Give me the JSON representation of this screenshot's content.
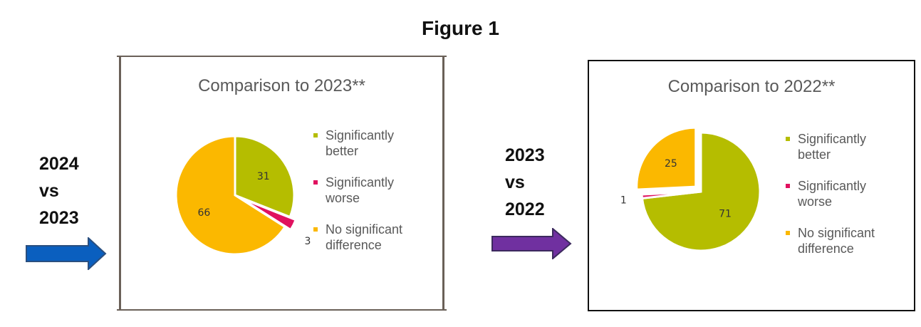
{
  "figure_title": "Figure 1",
  "left_label": [
    "2024",
    "vs",
    "2023"
  ],
  "middle_label": [
    "2023",
    "vs",
    "2022"
  ],
  "colors": {
    "better": "#b5bd00",
    "worse": "#e0115f",
    "no_diff": "#fbb800",
    "arrow_left": "#0a5fbf",
    "arrow_right": "#7030a0"
  },
  "legend": [
    {
      "line1": "Significantly",
      "line2": "better",
      "color": "#b5bd00"
    },
    {
      "line1": "Significantly",
      "line2": "worse",
      "color": "#e0115f"
    },
    {
      "line1": "No significant",
      "line2": "difference",
      "color": "#fbb800"
    }
  ],
  "chart_data": [
    {
      "type": "pie",
      "title": "Comparison to 2023**",
      "categories": [
        "Significantly better",
        "Significantly worse",
        "No significant difference"
      ],
      "values": [
        31,
        3,
        66
      ],
      "data_labels": [
        "31",
        "3",
        "66"
      ],
      "colors": [
        "#b5bd00",
        "#e0115f",
        "#fbb800"
      ],
      "legend_position": "right"
    },
    {
      "type": "pie",
      "title": "Comparison to 2022**",
      "categories": [
        "Significantly better",
        "Significantly worse",
        "No significant difference"
      ],
      "values": [
        71,
        1,
        25
      ],
      "data_labels": [
        "71",
        "1",
        "25"
      ],
      "colors": [
        "#b5bd00",
        "#e0115f",
        "#fbb800"
      ],
      "legend_position": "right"
    }
  ]
}
